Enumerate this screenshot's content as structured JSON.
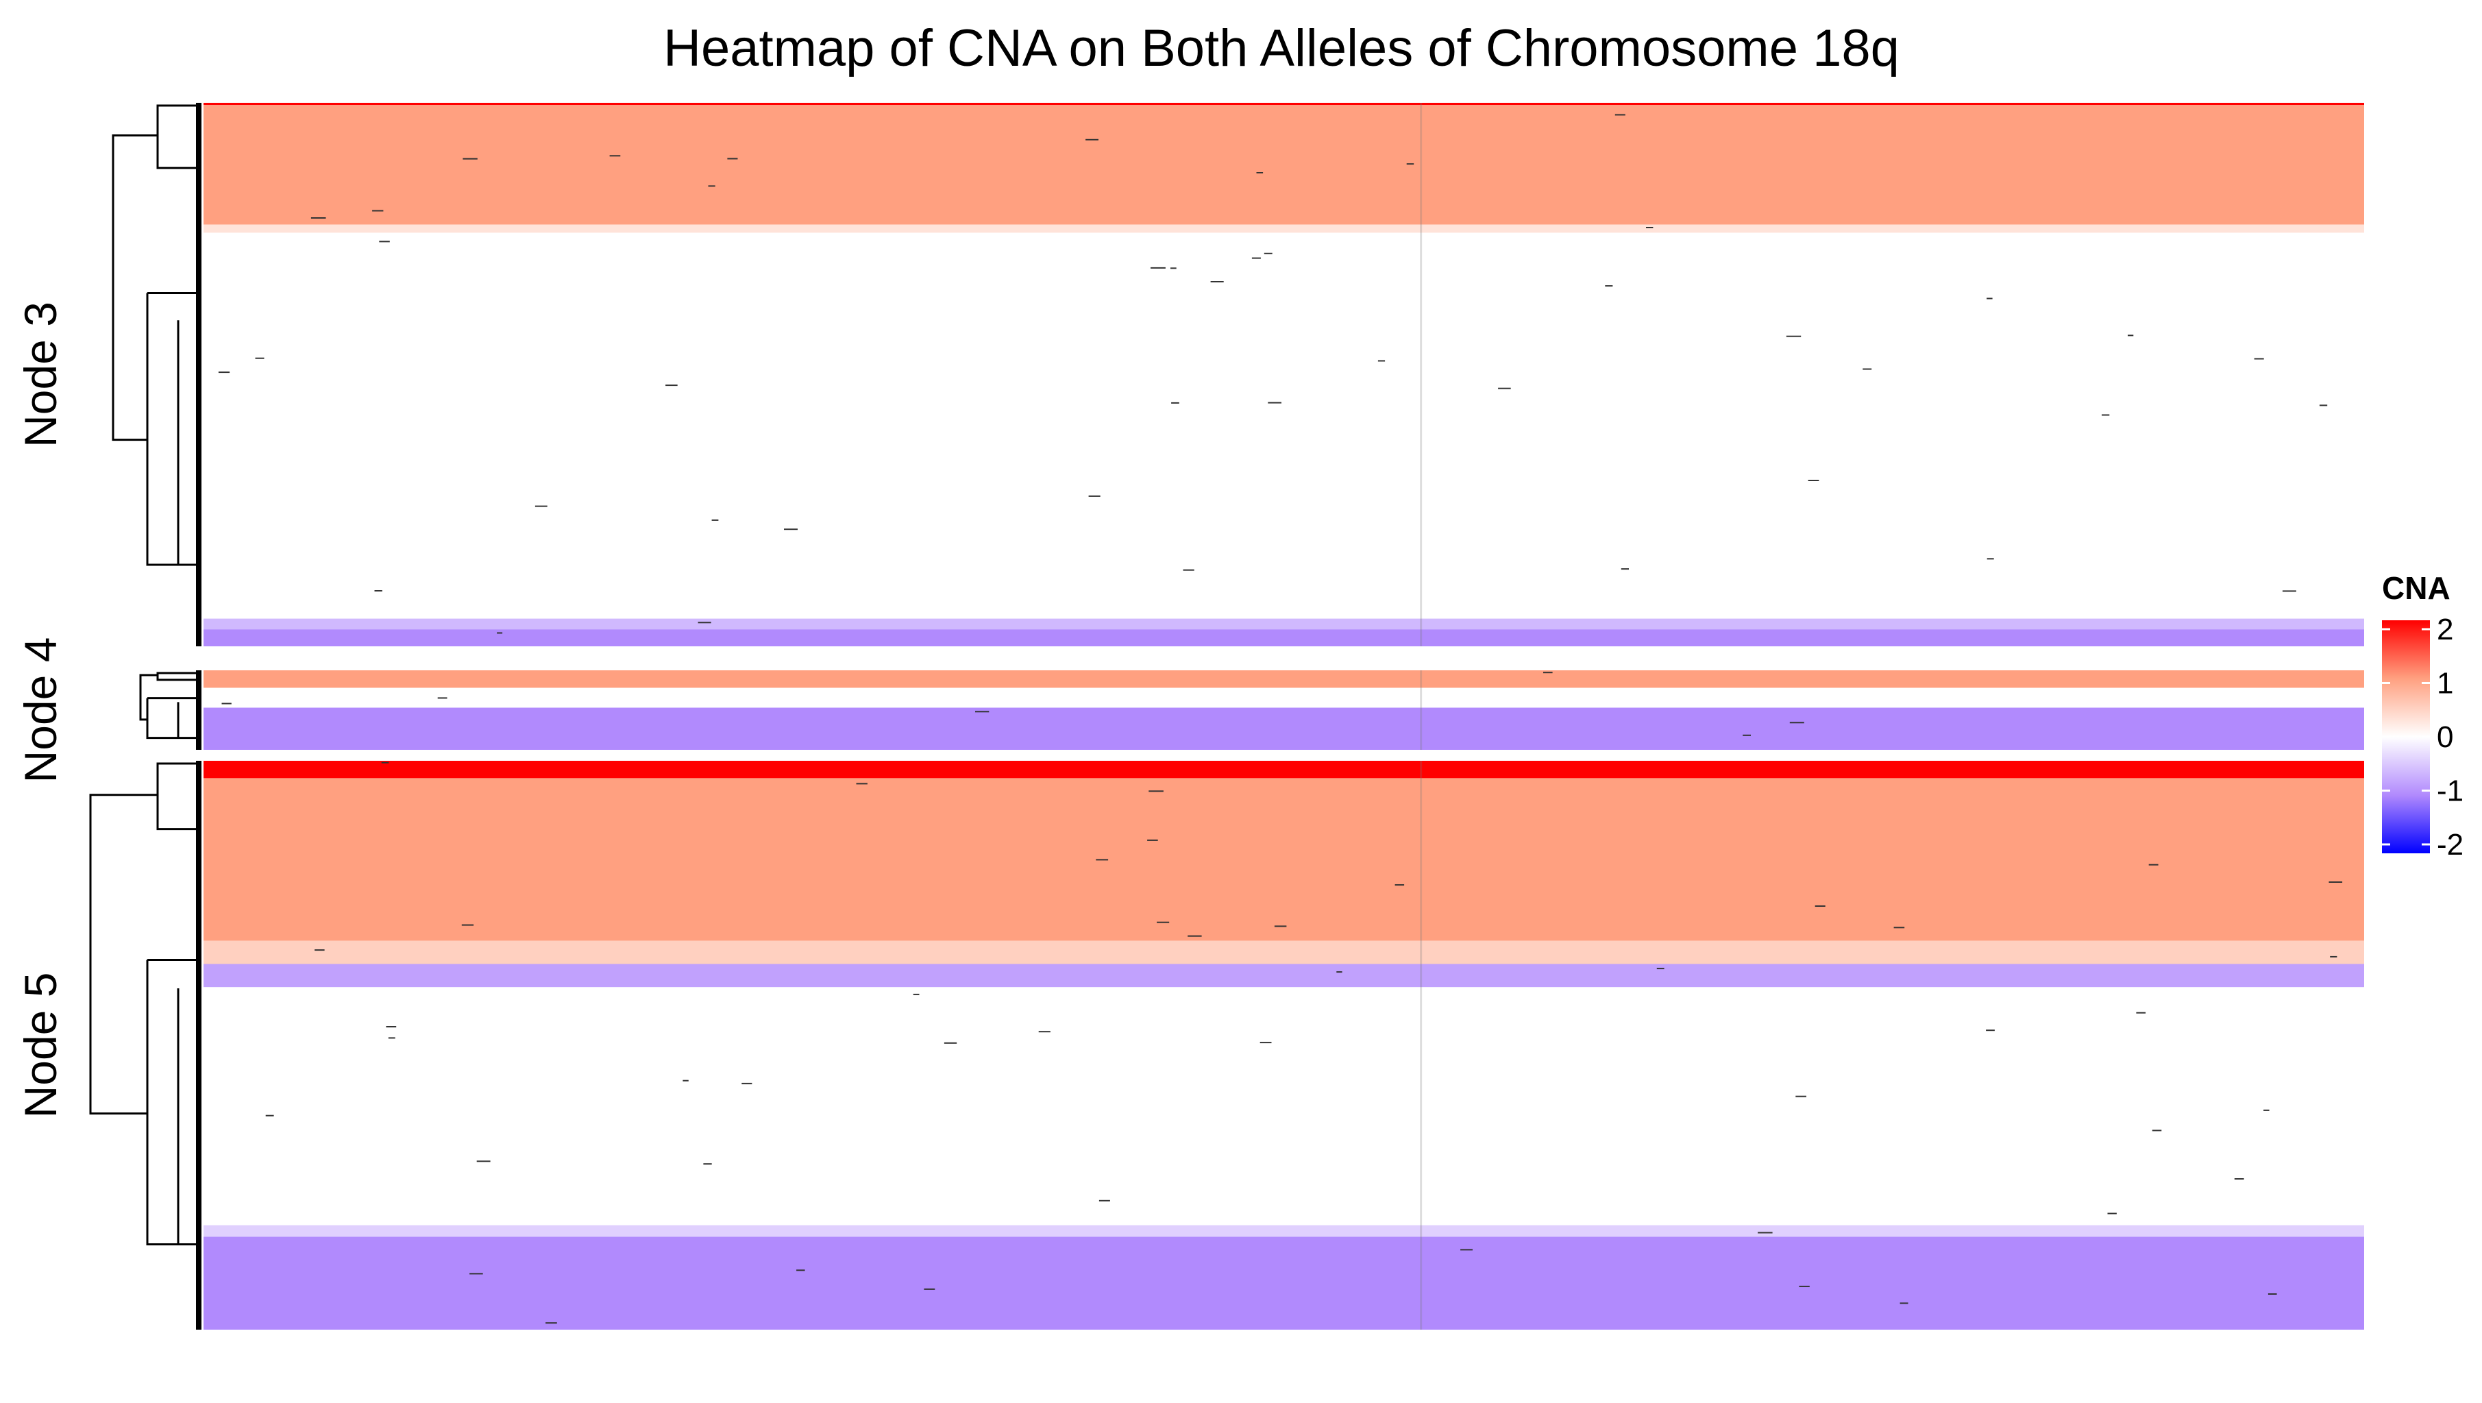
{
  "chart_data": {
    "type": "heatmap",
    "title": "Heatmap of CNA on Both Alleles of Chromosome 18q",
    "xlabel": "",
    "ylabel": "",
    "colorbar": {
      "title": "CNA",
      "ticks": [
        "2",
        "1",
        "0",
        "-1",
        "-2"
      ],
      "range": [
        -2,
        2
      ],
      "colors": {
        "min": "#0000ff",
        "low": "#b18afd",
        "mid": "#ffffff",
        "high": "#ffa080",
        "max": "#ff0000"
      }
    },
    "row_groups": [
      {
        "label": "Node 3",
        "blocks": [
          {
            "value": 2,
            "share": 0.004
          },
          {
            "value": 1,
            "share": 0.22
          },
          {
            "value": 0.3,
            "share": 0.015
          },
          {
            "value": 0,
            "share": 0.71
          },
          {
            "value": -0.6,
            "share": 0.02
          },
          {
            "value": -1,
            "share": 0.031
          }
        ]
      },
      {
        "label": "Node 4",
        "blocks": [
          {
            "value": 1,
            "share": 0.22
          },
          {
            "value": 0,
            "share": 0.25
          },
          {
            "value": -1,
            "share": 0.53
          }
        ]
      },
      {
        "label": "Node 5",
        "blocks": [
          {
            "value": 2,
            "share": 0.03
          },
          {
            "value": 1,
            "share": 0.28
          },
          {
            "value": 0.5,
            "share": 0.04
          },
          {
            "value": -0.8,
            "share": 0.04
          },
          {
            "value": 0,
            "share": 0.41
          },
          {
            "value": -0.4,
            "share": 0.02
          },
          {
            "value": -1,
            "share": 0.16
          }
        ]
      }
    ],
    "legend_position": "right"
  }
}
